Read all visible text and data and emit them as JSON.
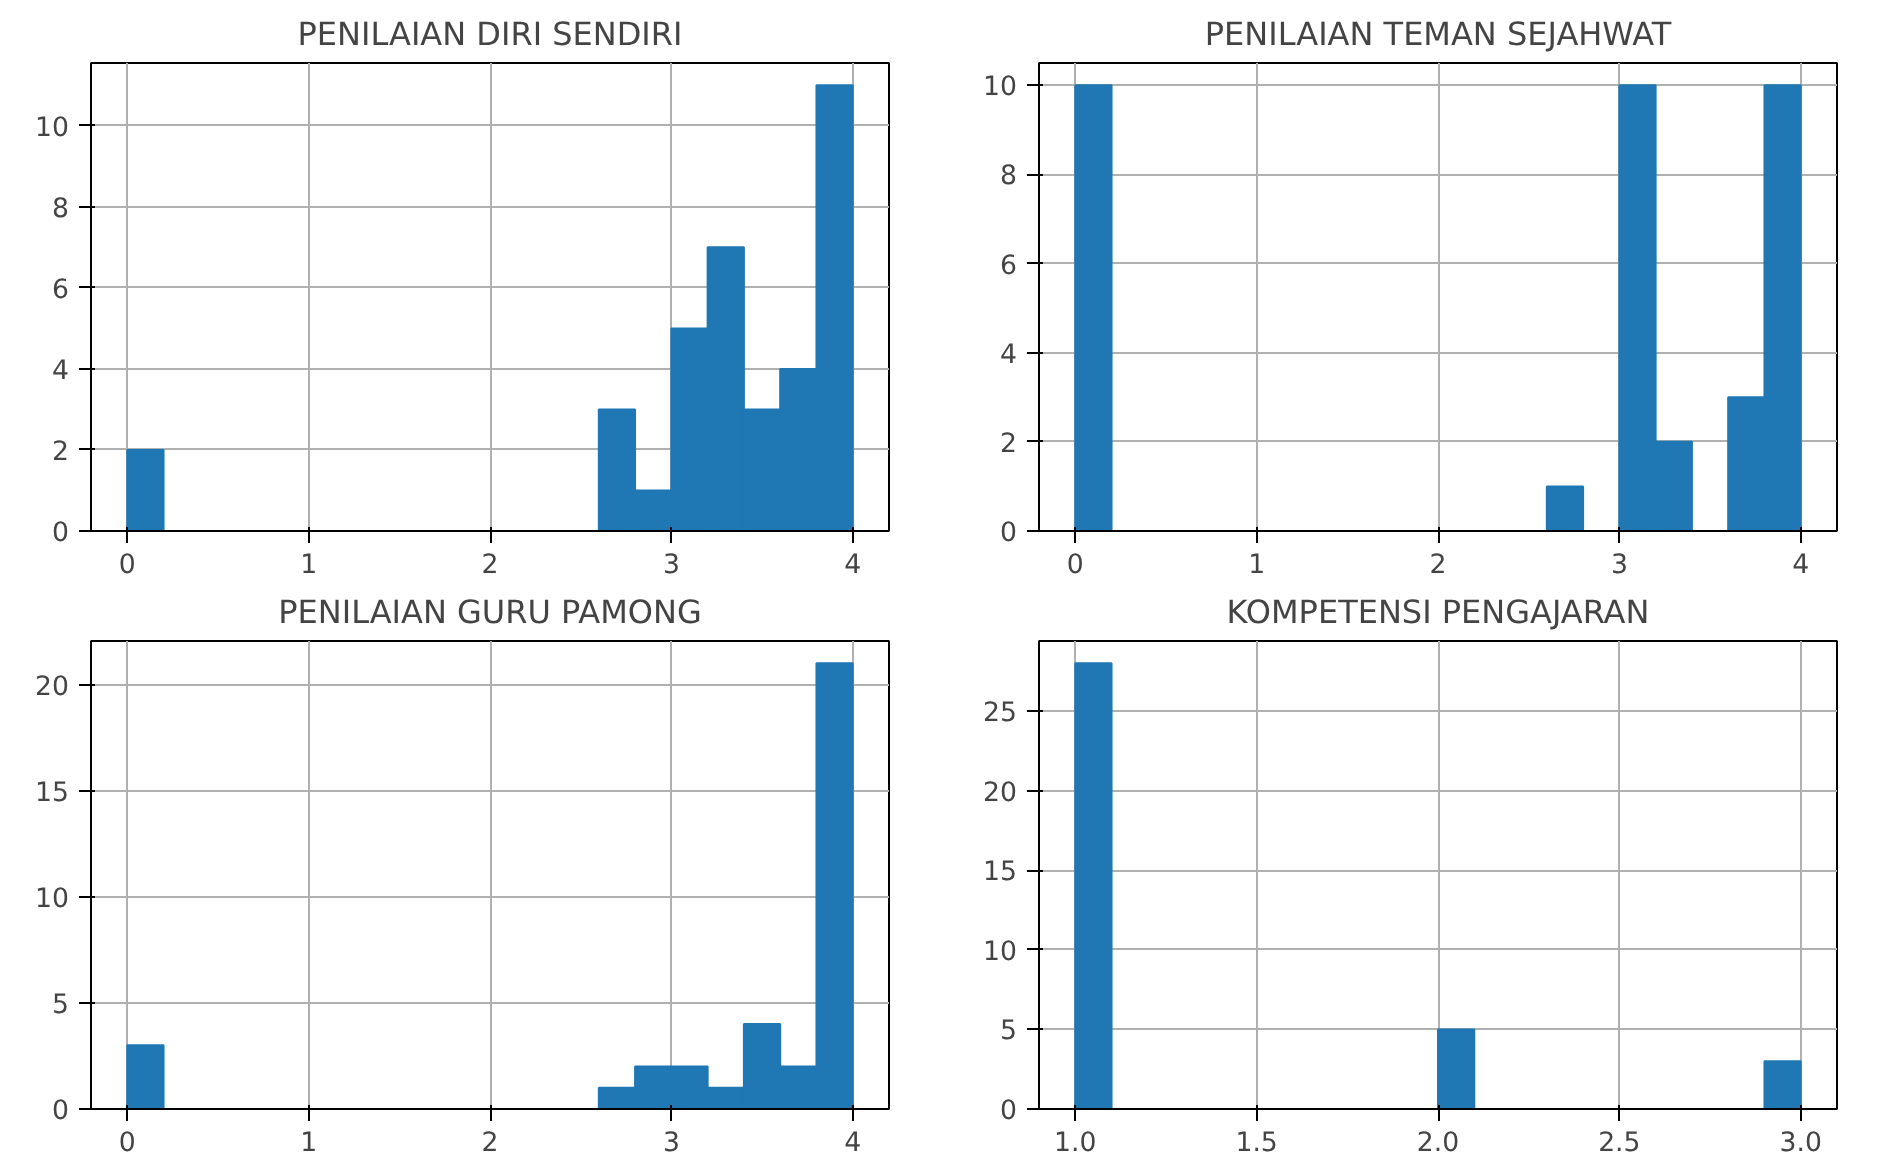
{
  "chart_data": [
    {
      "type": "histogram",
      "title": "PENILAIAN DIRI SENDIRI",
      "color": "#1f77b4",
      "bins": [
        0,
        0.2,
        0.4,
        0.6,
        0.8,
        1.0,
        1.2,
        1.4,
        1.6,
        1.8,
        2.0,
        2.2,
        2.4,
        2.6,
        2.8,
        3.0,
        3.2,
        3.4,
        3.6,
        3.8,
        4.0
      ],
      "values": [
        2,
        0,
        0,
        0,
        0,
        0,
        0,
        0,
        0,
        0,
        0,
        0,
        0,
        3,
        1,
        5,
        7,
        3,
        4,
        11
      ],
      "xlim": [
        -0.2,
        4.2
      ],
      "ylim": [
        0,
        11.55
      ],
      "xticks": [
        0,
        1,
        2,
        3,
        4
      ],
      "yticks": [
        0,
        2,
        4,
        6,
        8,
        10
      ],
      "grid": true
    },
    {
      "type": "histogram",
      "title": "PENILAIAN TEMAN SEJAHWAT",
      "color": "#1f77b4",
      "bins": [
        0,
        0.2,
        0.4,
        0.6,
        0.8,
        1.0,
        1.2,
        1.4,
        1.6,
        1.8,
        2.0,
        2.2,
        2.4,
        2.6,
        2.8,
        3.0,
        3.2,
        3.4,
        3.6,
        3.8,
        4.0
      ],
      "values": [
        10,
        0,
        0,
        0,
        0,
        0,
        0,
        0,
        0,
        0,
        0,
        0,
        0,
        1,
        0,
        10,
        2,
        0,
        3,
        10
      ],
      "xlim": [
        -0.2,
        4.2
      ],
      "ylim": [
        0,
        10.5
      ],
      "xticks": [
        0,
        1,
        2,
        3,
        4
      ],
      "yticks": [
        0,
        2,
        4,
        6,
        8,
        10
      ],
      "grid": true
    },
    {
      "type": "histogram",
      "title": "PENILAIAN GURU PAMONG",
      "color": "#1f77b4",
      "bins": [
        0,
        0.2,
        0.4,
        0.6,
        0.8,
        1.0,
        1.2,
        1.4,
        1.6,
        1.8,
        2.0,
        2.2,
        2.4,
        2.6,
        2.8,
        3.0,
        3.2,
        3.4,
        3.6,
        3.8,
        4.0
      ],
      "values": [
        3,
        0,
        0,
        0,
        0,
        0,
        0,
        0,
        0,
        0,
        0,
        0,
        0,
        1,
        2,
        2,
        1,
        4,
        2,
        21
      ],
      "xlim": [
        -0.2,
        4.2
      ],
      "ylim": [
        0,
        22.05
      ],
      "xticks": [
        0,
        1,
        2,
        3,
        4
      ],
      "yticks": [
        0,
        5,
        10,
        15,
        20
      ],
      "grid": true
    },
    {
      "type": "histogram",
      "title": "KOMPETENSI PENGAJARAN",
      "color": "#1f77b4",
      "bins": [
        1.0,
        1.1,
        1.2,
        1.3,
        1.4,
        1.5,
        1.6,
        1.7,
        1.8,
        1.9,
        2.0,
        2.1,
        2.2,
        2.3,
        2.4,
        2.5,
        2.6,
        2.7,
        2.8,
        2.9,
        3.0
      ],
      "values": [
        28,
        0,
        0,
        0,
        0,
        0,
        0,
        0,
        0,
        0,
        5,
        0,
        0,
        0,
        0,
        0,
        0,
        0,
        0,
        3
      ],
      "xlim": [
        0.9,
        3.1
      ],
      "ylim": [
        0,
        29.4
      ],
      "xticks": [
        {
          "value": 1.0,
          "label": "1.0"
        },
        {
          "value": 1.5,
          "label": "1.5"
        },
        {
          "value": 2.0,
          "label": "2.0"
        },
        {
          "value": 2.5,
          "label": "2.5"
        },
        {
          "value": 3.0,
          "label": "3.0"
        }
      ],
      "yticks": [
        0,
        5,
        10,
        15,
        20,
        25
      ],
      "grid": true
    }
  ]
}
